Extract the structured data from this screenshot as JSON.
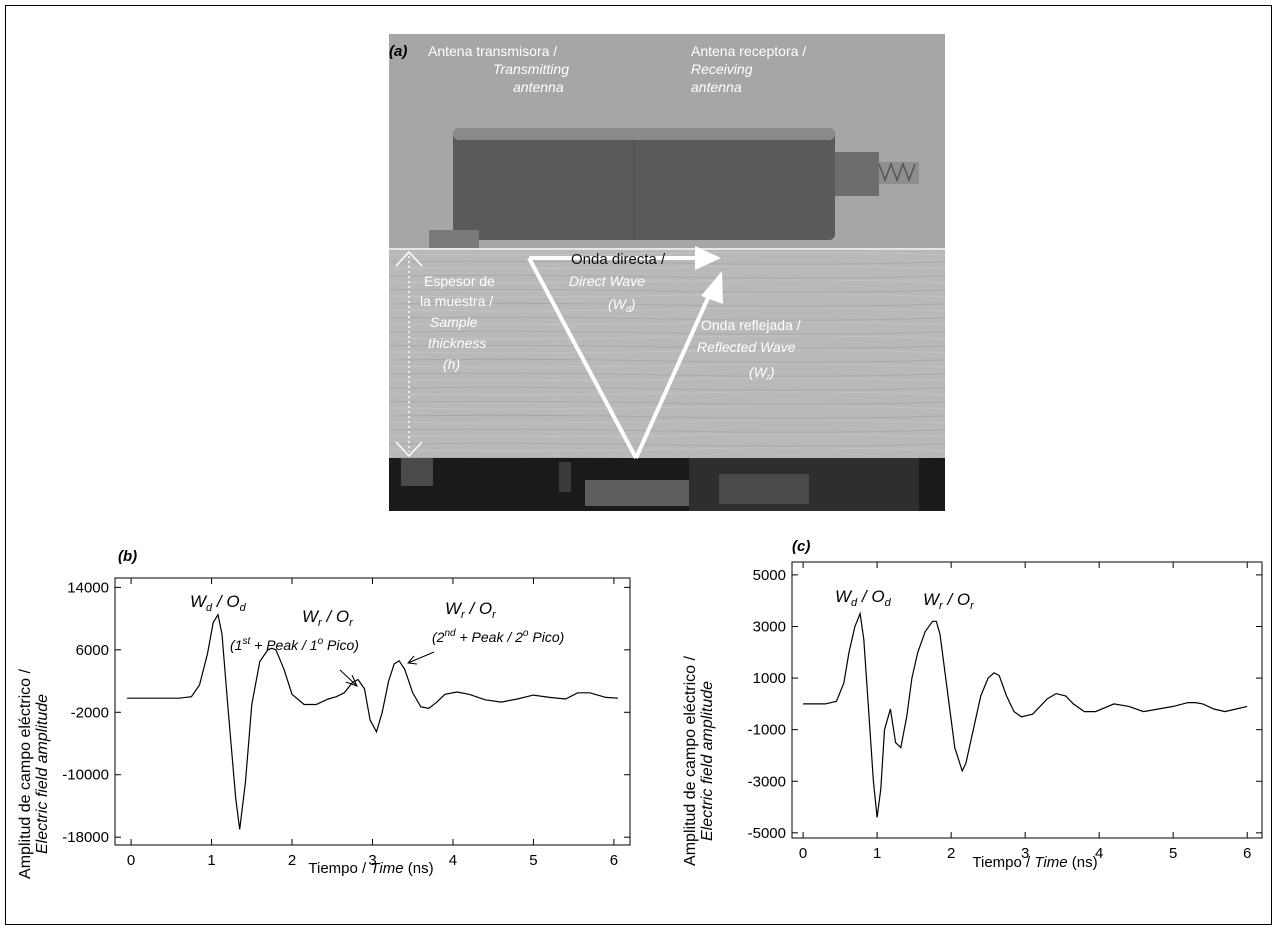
{
  "photo": {
    "panel_label": "(a)",
    "tx_antenna": [
      "Antena transmisora /",
      "Transmitting",
      "antenna"
    ],
    "rx_antenna": [
      "Antena receptora /",
      "Receiving",
      "antenna"
    ],
    "thickness": [
      "Espesor de",
      "la muestra /",
      "Sample",
      "thickness",
      "(h)"
    ],
    "direct_wave": [
      "Onda directa /",
      "Direct  Wave",
      "(W",
      "d",
      ")"
    ],
    "reflected_wave": [
      "Onda reflejada /",
      "Reflected Wave",
      "(W",
      "r",
      ")"
    ]
  },
  "chart_data": [
    {
      "type": "line",
      "panel_label": "(b)",
      "xlabel": [
        "Tiempo / ",
        "Time",
        " (ns)"
      ],
      "ylabel": [
        "Amplitud de campo eléctrico /",
        "Electric field amplitude"
      ],
      "xlim": [
        -0.2,
        6.2
      ],
      "ylim": [
        -19000,
        15200
      ],
      "xticks": [
        0,
        1,
        2,
        3,
        4,
        5,
        6
      ],
      "yticks": [
        14000,
        6000,
        -2000,
        -10000,
        -18000
      ],
      "annotations": {
        "wd": [
          "W",
          "d",
          " / O",
          "d"
        ],
        "wr1": [
          "W",
          "r",
          " / O",
          "r"
        ],
        "wr1_sub": [
          "(1",
          "st",
          " +  ",
          "Peak / 1",
          "o",
          " Pico)"
        ],
        "wr2": [
          "W",
          "r",
          " / O",
          "r"
        ],
        "wr2_sub": [
          "(2",
          "nd",
          " + ",
          "Peak / 2",
          "o",
          " Pico)"
        ]
      },
      "series": [
        {
          "x": [
            -0.05,
            0.3,
            0.6,
            0.75,
            0.85,
            0.95,
            1.02,
            1.08,
            1.13,
            1.2,
            1.3,
            1.35,
            1.42,
            1.5,
            1.6,
            1.7,
            1.75,
            1.8,
            1.9,
            2.0,
            2.15,
            2.3,
            2.45,
            2.55,
            2.65,
            2.75,
            2.82,
            2.9,
            2.97,
            3.05,
            3.12,
            3.2,
            3.27,
            3.33,
            3.4,
            3.5,
            3.6,
            3.7,
            3.8,
            3.9,
            4.05,
            4.2,
            4.4,
            4.6,
            4.8,
            5.0,
            5.2,
            5.4,
            5.55,
            5.7,
            5.9,
            6.05
          ],
          "y": [
            -200,
            -200,
            -200,
            0,
            1500,
            5500,
            9500,
            10500,
            8000,
            -1000,
            -13000,
            -17000,
            -11000,
            -1000,
            4500,
            6000,
            6200,
            6000,
            3500,
            300,
            -1000,
            -1000,
            -300,
            0,
            500,
            1800,
            2200,
            1000,
            -3000,
            -4500,
            -2000,
            2000,
            4200,
            4600,
            3500,
            500,
            -1300,
            -1500,
            -700,
            300,
            600,
            300,
            -400,
            -700,
            -300,
            200,
            -100,
            -300,
            500,
            500,
            -100,
            -200
          ]
        }
      ]
    },
    {
      "type": "line",
      "panel_label": "(c)",
      "xlabel": [
        "Tiempo / ",
        "Time",
        " (ns)"
      ],
      "ylabel": [
        "Amplitud de campo eléctrico /",
        "Electric field amplitude"
      ],
      "xlim": [
        -0.15,
        6.2
      ],
      "ylim": [
        -5200,
        5500
      ],
      "xticks": [
        0,
        1,
        2,
        3,
        4,
        5,
        6
      ],
      "yticks": [
        5000,
        3000,
        1000,
        -1000,
        -3000,
        -5000
      ],
      "annotations": {
        "wd": [
          "W",
          "d",
          " / O",
          "d"
        ],
        "wr": [
          "W",
          "r",
          " / O",
          "r"
        ]
      },
      "series": [
        {
          "x": [
            0.0,
            0.3,
            0.45,
            0.55,
            0.62,
            0.7,
            0.77,
            0.82,
            0.88,
            0.95,
            1.0,
            1.05,
            1.1,
            1.18,
            1.25,
            1.32,
            1.4,
            1.47,
            1.55,
            1.65,
            1.75,
            1.8,
            1.85,
            1.95,
            2.05,
            2.15,
            2.2,
            2.3,
            2.4,
            2.5,
            2.58,
            2.65,
            2.75,
            2.85,
            2.95,
            3.1,
            3.3,
            3.42,
            3.55,
            3.65,
            3.8,
            3.95,
            4.2,
            4.4,
            4.6,
            4.8,
            5.0,
            5.2,
            5.3,
            5.4,
            5.55,
            5.7,
            5.85,
            6.0
          ],
          "y": [
            0,
            0,
            100,
            800,
            2000,
            3000,
            3500,
            2500,
            0,
            -3000,
            -4400,
            -3300,
            -1000,
            -200,
            -1500,
            -1700,
            -500,
            1000,
            2000,
            2800,
            3200,
            3200,
            2700,
            500,
            -1700,
            -2600,
            -2300,
            -1000,
            300,
            1000,
            1200,
            1100,
            300,
            -300,
            -500,
            -400,
            200,
            400,
            300,
            0,
            -300,
            -300,
            0,
            -100,
            -300,
            -200,
            -100,
            50,
            50,
            0,
            -200,
            -300,
            -200,
            -100
          ]
        }
      ]
    }
  ]
}
